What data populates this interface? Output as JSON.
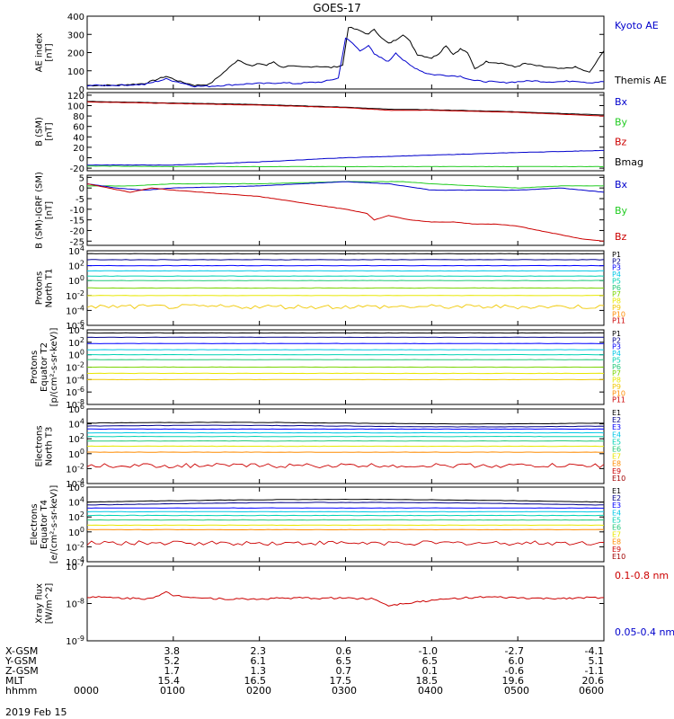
{
  "title": "GOES-17",
  "date": "2019 Feb 15",
  "colors": {
    "black": "#000000",
    "blue": "#0000cc",
    "green": "#22cc22",
    "red": "#cc0000",
    "navy": "#00008b",
    "royal": "#0000ff",
    "cyan": "#00c8e6",
    "teal": "#00d2b4",
    "seagreen": "#22c87a",
    "lime": "#7ad400",
    "yellow": "#e8e800",
    "gold": "#f0c800",
    "orange": "#ff8c00",
    "darkred": "#a00000",
    "crimson": "#cc0000"
  },
  "chart_data": [
    {
      "type": "line",
      "id": "ae",
      "ylabel": [
        "AE index",
        "[nT]"
      ],
      "ylim": [
        0,
        400
      ],
      "yticks": [
        "0",
        "100",
        "200",
        "300",
        "400"
      ],
      "legend": [
        {
          "label": "Kyoto AE",
          "color": "#0000cc"
        },
        {
          "label": "Themis AE",
          "color": "#000000"
        }
      ],
      "series": [
        {
          "name": "Themis AE",
          "color": "#000000",
          "x": [
            0,
            20,
            40,
            55,
            65,
            75,
            85,
            95,
            105,
            115,
            120,
            125,
            130,
            135,
            140,
            150,
            160,
            170,
            178,
            182,
            190,
            196,
            200,
            205,
            210,
            215,
            220,
            225,
            230,
            235,
            240,
            245,
            250,
            255,
            260,
            265,
            270,
            278,
            285,
            290,
            298,
            305,
            315,
            320,
            330,
            340,
            350,
            360
          ],
          "y": [
            20,
            20,
            30,
            70,
            40,
            20,
            25,
            90,
            160,
            125,
            140,
            130,
            150,
            120,
            125,
            120,
            125,
            118,
            130,
            340,
            320,
            300,
            330,
            280,
            250,
            270,
            300,
            260,
            190,
            180,
            170,
            195,
            240,
            190,
            220,
            200,
            110,
            150,
            145,
            140,
            120,
            140,
            125,
            120,
            110,
            120,
            90,
            210
          ]
        },
        {
          "name": "Kyoto AE",
          "color": "#0000cc",
          "x": [
            0,
            20,
            40,
            55,
            65,
            75,
            85,
            95,
            105,
            115,
            125,
            135,
            145,
            155,
            165,
            175,
            180,
            185,
            190,
            196,
            200,
            205,
            210,
            215,
            220,
            225,
            230,
            235,
            240,
            250,
            260,
            270,
            280,
            290,
            300,
            310,
            320,
            330,
            340,
            350,
            360
          ],
          "y": [
            20,
            20,
            25,
            55,
            35,
            15,
            15,
            20,
            25,
            30,
            30,
            35,
            30,
            35,
            40,
            60,
            280,
            250,
            210,
            240,
            190,
            170,
            150,
            200,
            160,
            130,
            110,
            90,
            80,
            75,
            70,
            45,
            40,
            35,
            40,
            45,
            40,
            40,
            45,
            35,
            40
          ]
        }
      ]
    },
    {
      "type": "line",
      "id": "bsm",
      "ylabel": [
        "B (SM)",
        "[nT]"
      ],
      "ylim": [
        -25,
        125
      ],
      "yticks": [
        "-20",
        "0",
        "20",
        "40",
        "60",
        "80",
        "100",
        "120"
      ],
      "ytick_values": [
        -20,
        0,
        20,
        40,
        60,
        80,
        100,
        120
      ],
      "legend": [
        {
          "label": "Bx",
          "color": "#0000cc"
        },
        {
          "label": "By",
          "color": "#22cc22"
        },
        {
          "label": "Bz",
          "color": "#cc0000"
        },
        {
          "label": "Bmag",
          "color": "#000000"
        }
      ],
      "series": [
        {
          "name": "Bmag",
          "color": "#000000",
          "x": [
            0,
            60,
            120,
            180,
            210,
            240,
            300,
            360
          ],
          "y": [
            108,
            105,
            102,
            97,
            93,
            92,
            88,
            82
          ]
        },
        {
          "name": "Bz",
          "color": "#cc0000",
          "x": [
            0,
            60,
            120,
            180,
            210,
            240,
            300,
            360
          ],
          "y": [
            107,
            104,
            101,
            96,
            91,
            91,
            87,
            80
          ]
        },
        {
          "name": "Bx",
          "color": "#0000cc",
          "x": [
            0,
            60,
            120,
            180,
            240,
            300,
            360
          ],
          "y": [
            -14,
            -14,
            -8,
            0,
            5,
            10,
            14
          ]
        },
        {
          "name": "By",
          "color": "#22cc22",
          "x": [
            0,
            60,
            120,
            180,
            240,
            300,
            360
          ],
          "y": [
            -16,
            -17,
            -17,
            -17,
            -17,
            -17,
            -17
          ]
        }
      ]
    },
    {
      "type": "line",
      "id": "bdiff",
      "ylabel": [
        "B (SM)-IGRF (SM)",
        "[nT]"
      ],
      "ylim": [
        -27,
        6
      ],
      "yticks": [
        "5",
        "0",
        "-5",
        "-10",
        "-15",
        "-20",
        "-25"
      ],
      "ytick_values": [
        5,
        0,
        -5,
        -10,
        -15,
        -20,
        -25
      ],
      "legend": [
        {
          "label": "Bx",
          "color": "#0000cc"
        },
        {
          "label": "By",
          "color": "#22cc22"
        },
        {
          "label": "Bz",
          "color": "#cc0000"
        }
      ],
      "series": [
        {
          "name": "By",
          "color": "#22cc22",
          "x": [
            0,
            30,
            60,
            120,
            180,
            220,
            240,
            270,
            300,
            330,
            360
          ],
          "y": [
            1,
            1,
            2,
            2,
            3,
            3,
            2,
            1,
            0,
            1,
            1
          ]
        },
        {
          "name": "Bx",
          "color": "#0000cc",
          "x": [
            0,
            20,
            40,
            60,
            120,
            180,
            210,
            240,
            270,
            300,
            330,
            360
          ],
          "y": [
            2,
            0,
            -1,
            0,
            1,
            3,
            2,
            -1,
            -1,
            -1,
            0,
            -2
          ]
        },
        {
          "name": "Bz",
          "color": "#cc0000",
          "x": [
            0,
            15,
            30,
            45,
            60,
            80,
            100,
            120,
            140,
            160,
            180,
            195,
            200,
            210,
            225,
            240,
            255,
            270,
            285,
            300,
            315,
            330,
            345,
            360
          ],
          "y": [
            2,
            0,
            -2,
            0,
            -1,
            -2,
            -3,
            -4,
            -6,
            -8,
            -10,
            -12,
            -15,
            -13,
            -15,
            -16,
            -16,
            -17,
            -17,
            -18,
            -20,
            -22,
            -24,
            -25
          ]
        }
      ]
    },
    {
      "type": "line",
      "id": "p-north",
      "ylabel": [
        "Protons",
        "North T1"
      ],
      "log": true,
      "ylim_exp": [
        -6,
        4
      ],
      "yticks": [
        "10^4",
        "10^2",
        "10^0",
        "10^-2",
        "10^-4",
        "10^-6"
      ],
      "legend": [
        "P1",
        "P2",
        "P3",
        "P4",
        "P5",
        "P6",
        "P7",
        "P8",
        "P9",
        "P10",
        "P11"
      ],
      "channel_colors": [
        "#000000",
        "#00008b",
        "#0000ff",
        "#00c8e6",
        "#00d2b4",
        "#22c87a",
        "#7ad400",
        "#e8e800",
        "#f0c800",
        "#ff8c00",
        "#cc0000"
      ],
      "channel_levels": [
        3.6,
        2.8,
        2.0,
        1.3,
        0.6,
        0.0,
        -1.0,
        -2.0,
        -3.5,
        -6,
        -6
      ]
    },
    {
      "type": "line",
      "id": "p-equator",
      "ylabel": [
        "Protons",
        "Equator T2",
        "[p/(cm²-s-sr-keV)]"
      ],
      "log": true,
      "ylim_exp": [
        -8,
        4
      ],
      "yticks": [
        "10^4",
        "10^2",
        "10^0",
        "10^-2",
        "10^-4",
        "10^-6",
        "10^-8"
      ],
      "legend": [
        "P1",
        "P2",
        "P3",
        "P4",
        "P5",
        "P6",
        "P7",
        "P8",
        "P9",
        "P10",
        "P11"
      ],
      "channel_colors": [
        "#000000",
        "#00008b",
        "#0000ff",
        "#00c8e6",
        "#00d2b4",
        "#22c87a",
        "#7ad400",
        "#e8e800",
        "#f0c800",
        "#ff8c00",
        "#cc0000"
      ],
      "channel_levels": [
        3.5,
        2.8,
        1.8,
        0.8,
        0.0,
        -0.8,
        -2.0,
        -3.0,
        -4.0,
        -8,
        -8
      ]
    },
    {
      "type": "line",
      "id": "e-north",
      "ylabel": [
        "Electrons",
        "North T3"
      ],
      "log": true,
      "ylim_exp": [
        -4,
        6
      ],
      "yticks": [
        "10^6",
        "10^4",
        "10^2",
        "10^0",
        "10^-2",
        "10^-4"
      ],
      "legend": [
        "E1",
        "E2",
        "E3",
        "E4",
        "E5",
        "E6",
        "E7",
        "E8",
        "E9",
        "E10"
      ],
      "channel_colors": [
        "#000000",
        "#00008b",
        "#0000ff",
        "#00c8e6",
        "#00d2b4",
        "#22c87a",
        "#e8e800",
        "#ff8c00",
        "#cc0000",
        "#a00000"
      ],
      "channel_levels": [
        4.1,
        3.7,
        3.3,
        2.8,
        2.3,
        1.7,
        1.0,
        0.2,
        -1.6,
        -4
      ]
    },
    {
      "type": "line",
      "id": "e-equator",
      "ylabel": [
        "Electrons",
        "Equator T4",
        "[e/(cm²-s-sr-keV)]"
      ],
      "log": true,
      "ylim_exp": [
        -4,
        6
      ],
      "yticks": [
        "10^6",
        "10^4",
        "10^2",
        "10^0",
        "10^-2",
        "10^-4"
      ],
      "legend": [
        "E1",
        "E2",
        "E3",
        "E4",
        "E5",
        "E6",
        "E7",
        "E8",
        "E9",
        "E10"
      ],
      "channel_colors": [
        "#000000",
        "#00008b",
        "#0000ff",
        "#00c8e6",
        "#00d2b4",
        "#22c87a",
        "#e8e800",
        "#ff8c00",
        "#cc0000",
        "#a00000"
      ],
      "channel_levels": [
        4.0,
        3.6,
        3.2,
        2.7,
        2.2,
        1.6,
        0.9,
        0.3,
        -1.5,
        -4
      ]
    },
    {
      "type": "line",
      "id": "xray",
      "ylabel": [
        "Xray flux",
        "[W/m^2]"
      ],
      "log": true,
      "ylim_exp": [
        -9,
        -7
      ],
      "yticks": [
        "10^-7",
        "10^-8",
        "10^-9"
      ],
      "legend": [
        {
          "label": "0.1-0.8 nm",
          "color": "#cc0000"
        },
        {
          "label": "0.05-0.4 nm",
          "color": "#0000cc"
        }
      ],
      "series": [
        {
          "name": "0.1-0.8 nm",
          "color": "#cc0000",
          "x": [
            0,
            20,
            40,
            50,
            55,
            60,
            80,
            100,
            120,
            140,
            160,
            180,
            200,
            210,
            220,
            230,
            240,
            260,
            280,
            300,
            320,
            340,
            360
          ],
          "y": [
            -7.82,
            -7.85,
            -7.87,
            -7.8,
            -7.7,
            -7.78,
            -7.85,
            -7.88,
            -7.88,
            -7.85,
            -7.86,
            -7.85,
            -7.88,
            -8.05,
            -8.0,
            -7.95,
            -7.92,
            -7.85,
            -7.83,
            -7.85,
            -7.87,
            -7.85,
            -7.84
          ]
        }
      ]
    }
  ],
  "x_axis": {
    "xlim": [
      0,
      360
    ],
    "tick_minutes": [
      0,
      60,
      120,
      180,
      240,
      300,
      360
    ],
    "rows": [
      {
        "label": "X-GSM",
        "values": [
          "",
          "3.8",
          "2.3",
          "0.6",
          "-1.0",
          "-2.7",
          "-4.1"
        ]
      },
      {
        "label": "Y-GSM",
        "values": [
          "",
          "5.2",
          "6.1",
          "6.5",
          "6.5",
          "6.0",
          "5.1"
        ]
      },
      {
        "label": "Z-GSM",
        "values": [
          "",
          "1.7",
          "1.3",
          "0.7",
          "0.1",
          "-0.6",
          "-1.1"
        ]
      },
      {
        "label": "MLT",
        "values": [
          "",
          "15.4",
          "16.5",
          "17.5",
          "18.5",
          "19.6",
          "20.6"
        ]
      },
      {
        "label": "hhmm",
        "values": [
          "0000",
          "0100",
          "0200",
          "0300",
          "0400",
          "0500",
          "0600"
        ]
      }
    ]
  }
}
